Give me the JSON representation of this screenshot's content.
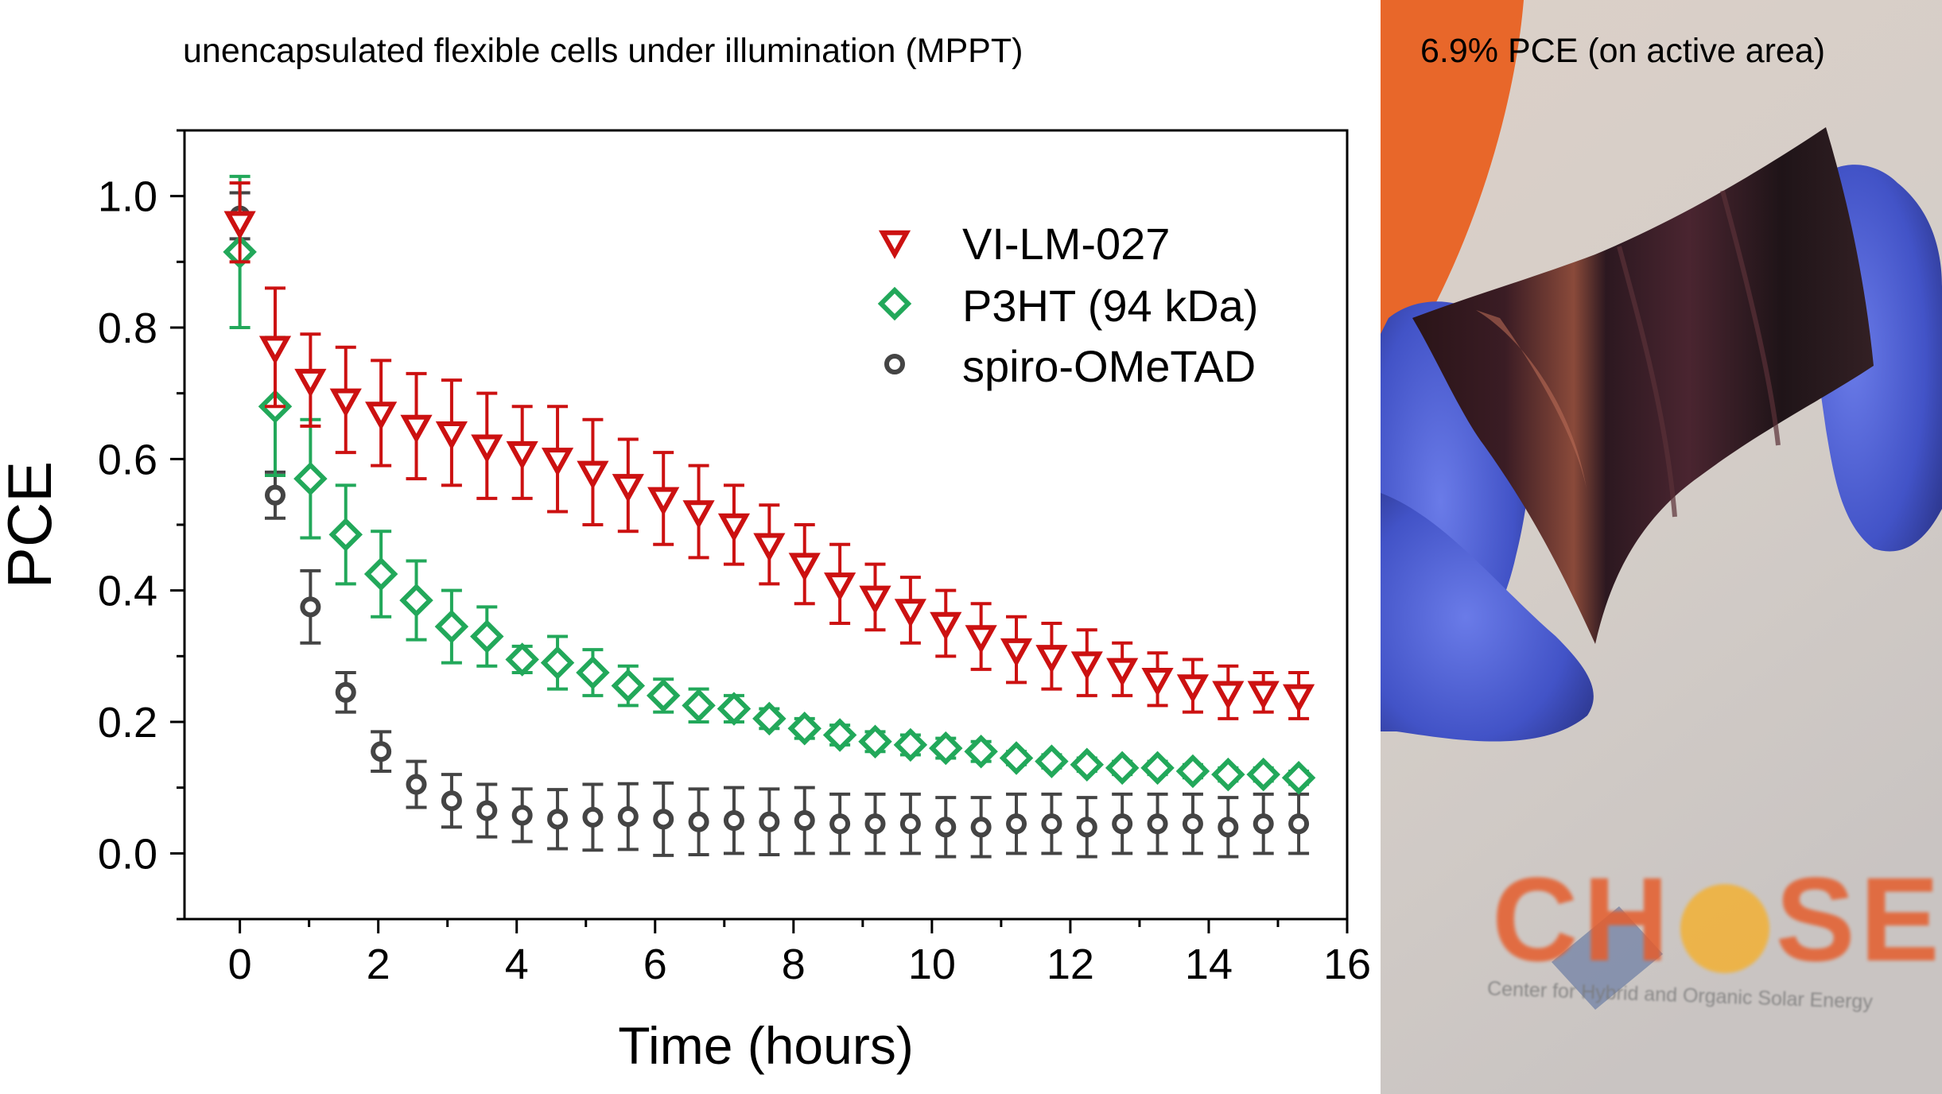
{
  "chart_title": "unencapsulated flexible cells under illumination (MPPT)",
  "photo_caption": "6.9% PCE (on active area)",
  "logo_text": {
    "brand_left": "CH",
    "brand_right": "SE",
    "subtitle": "Center for Hybrid and Organic Solar Energy"
  },
  "colors": {
    "red": "#cc1111",
    "green": "#22a85a",
    "gray": "#444444"
  },
  "chart_data": {
    "type": "scatter",
    "title": "unencapsulated flexible cells under illumination (MPPT)",
    "xlabel": "Time (hours)",
    "ylabel": "PCE",
    "xlim": [
      -0.8,
      16
    ],
    "ylim": [
      -0.1,
      1.1
    ],
    "xticks": [
      0,
      2,
      4,
      6,
      8,
      10,
      12,
      14,
      16
    ],
    "yticks": [
      0.0,
      0.2,
      0.4,
      0.6,
      0.8,
      1.0
    ],
    "xtick_labels": [
      "0",
      "2",
      "4",
      "6",
      "8",
      "10",
      "12",
      "14",
      "16"
    ],
    "ytick_labels": [
      "0.0",
      "0.2",
      "0.4",
      "0.6",
      "0.8",
      "1.0"
    ],
    "legend_position": "top-right",
    "x": [
      0,
      0.51,
      1.02,
      1.53,
      2.04,
      2.55,
      3.06,
      3.57,
      4.08,
      4.59,
      5.1,
      5.61,
      6.12,
      6.63,
      7.14,
      7.65,
      8.16,
      8.67,
      9.18,
      9.69,
      10.2,
      10.71,
      11.22,
      11.73,
      12.24,
      12.75,
      13.26,
      13.77,
      14.28,
      14.79,
      15.3
    ],
    "series": [
      {
        "name": "VI-LM-027",
        "marker": "triangle-down",
        "color": "#cc1111",
        "values": [
          0.96,
          0.77,
          0.72,
          0.69,
          0.67,
          0.65,
          0.64,
          0.62,
          0.61,
          0.6,
          0.58,
          0.56,
          0.54,
          0.52,
          0.5,
          0.47,
          0.44,
          0.41,
          0.39,
          0.37,
          0.35,
          0.33,
          0.31,
          0.3,
          0.29,
          0.28,
          0.265,
          0.255,
          0.245,
          0.245,
          0.24
        ],
        "errors": [
          0.06,
          0.09,
          0.07,
          0.08,
          0.08,
          0.08,
          0.08,
          0.08,
          0.07,
          0.08,
          0.08,
          0.07,
          0.07,
          0.07,
          0.06,
          0.06,
          0.06,
          0.06,
          0.05,
          0.05,
          0.05,
          0.05,
          0.05,
          0.05,
          0.05,
          0.04,
          0.04,
          0.04,
          0.04,
          0.03,
          0.035
        ]
      },
      {
        "name": "P3HT (94 kDa)",
        "marker": "diamond",
        "color": "#22a85a",
        "values": [
          0.915,
          0.68,
          0.57,
          0.485,
          0.425,
          0.385,
          0.345,
          0.33,
          0.295,
          0.29,
          0.275,
          0.255,
          0.24,
          0.225,
          0.22,
          0.205,
          0.19,
          0.18,
          0.17,
          0.165,
          0.16,
          0.155,
          0.145,
          0.14,
          0.135,
          0.13,
          0.13,
          0.125,
          0.12,
          0.12,
          0.115
        ],
        "errors": [
          0.115,
          0.105,
          0.09,
          0.075,
          0.065,
          0.06,
          0.055,
          0.045,
          0.02,
          0.04,
          0.035,
          0.03,
          0.025,
          0.025,
          0.02,
          0.015,
          0.015,
          0.015,
          0.015,
          0.015,
          0.015,
          0.015,
          0.01,
          0.01,
          0.01,
          0.01,
          0.01,
          0.01,
          0.01,
          0.01,
          0.01
        ]
      },
      {
        "name": "spiro-OMeTAD",
        "marker": "circle",
        "color": "#444444",
        "values": [
          0.97,
          0.545,
          0.375,
          0.245,
          0.155,
          0.105,
          0.08,
          0.065,
          0.058,
          0.052,
          0.055,
          0.056,
          0.052,
          0.048,
          0.05,
          0.048,
          0.05,
          0.045,
          0.045,
          0.045,
          0.04,
          0.04,
          0.045,
          0.045,
          0.04,
          0.045,
          0.045,
          0.045,
          0.04,
          0.045,
          0.045
        ]
      }
    ],
    "errors_spiro": [
      0.035,
      0.035,
      0.055,
      0.03,
      0.03,
      0.035,
      0.04,
      0.04,
      0.04,
      0.045,
      0.05,
      0.05,
      0.055,
      0.05,
      0.05,
      0.05,
      0.05,
      0.045,
      0.045,
      0.045,
      0.045,
      0.045,
      0.045,
      0.045,
      0.045,
      0.045,
      0.045,
      0.045,
      0.045,
      0.045,
      0.045
    ]
  }
}
